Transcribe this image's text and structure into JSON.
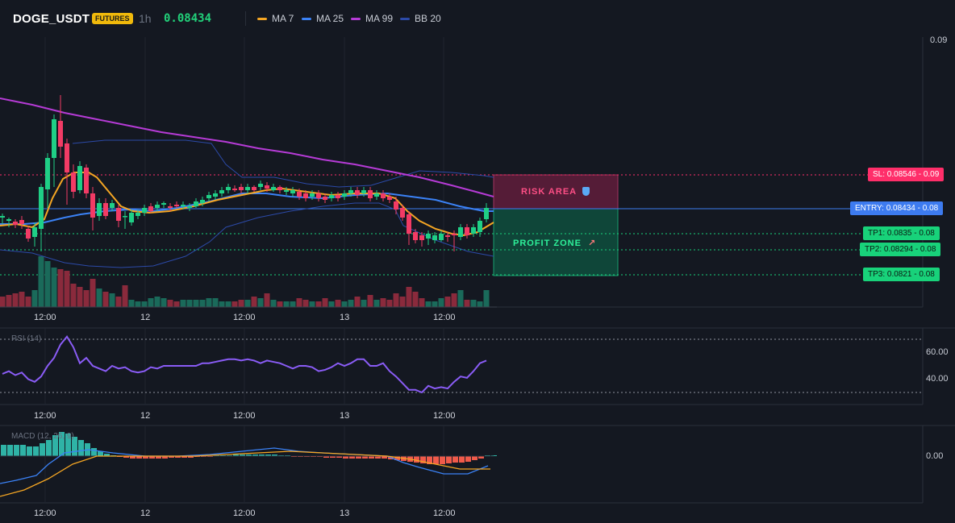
{
  "header": {
    "symbol": "DOGE_USDT",
    "badge": "FUTURES",
    "timeframe": "1h",
    "last_price": "0.08434"
  },
  "legend": [
    {
      "label": "MA 7",
      "color": "#f5a623"
    },
    {
      "label": "MA 25",
      "color": "#3b82f6"
    },
    {
      "label": "MA 99",
      "color": "#b63bd6"
    },
    {
      "label": "BB 20",
      "color": "#2c4aa8"
    }
  ],
  "price_axis": {
    "top_label": "0.09"
  },
  "levels": {
    "sl": {
      "label": "SL: 0.08546 - 0.09",
      "color": "#ff2e6a"
    },
    "entry": {
      "label": "ENTRY: 0.08434 - 0.08",
      "color": "#3d7bf0"
    },
    "tp1": {
      "label": "TP1: 0.0835 - 0.08",
      "color": "#18d27a"
    },
    "tp2": {
      "label": "TP2: 0.08294 - 0.08",
      "color": "#18d27a"
    },
    "tp3": {
      "label": "TP3: 0.0821 - 0.08",
      "color": "#18d27a"
    }
  },
  "zones": {
    "risk": {
      "label": "RISK AREA",
      "icon": "shield-icon"
    },
    "profit": {
      "label": "PROFIT ZONE",
      "icon": "rocket-icon"
    }
  },
  "time_axis": [
    "12:00",
    "12",
    "12:00",
    "13",
    "12:00"
  ],
  "rsi": {
    "title": "RSI (14)",
    "ticks": [
      "60.00",
      "40.00"
    ],
    "values": [
      44,
      46,
      43,
      45,
      40,
      38,
      42,
      50,
      56,
      66,
      72,
      64,
      52,
      56,
      50,
      48,
      46,
      50,
      48,
      49,
      46,
      45,
      46,
      49,
      48,
      50,
      50,
      50,
      50,
      50,
      50,
      52,
      52,
      53,
      54,
      55,
      55,
      54,
      55,
      54,
      52,
      54,
      53,
      52,
      50,
      48,
      50,
      50,
      49,
      46,
      47,
      49,
      52,
      50,
      52,
      55,
      55,
      50,
      50,
      52,
      46,
      42,
      37,
      32,
      32,
      30,
      35,
      33,
      34,
      33,
      38,
      42,
      41,
      46,
      52,
      54
    ],
    "colors": {
      "line": "#8a5cf6"
    }
  },
  "macd": {
    "title": "MACD (12, 26, 9)",
    "value_tick": "0.00"
  }
}
